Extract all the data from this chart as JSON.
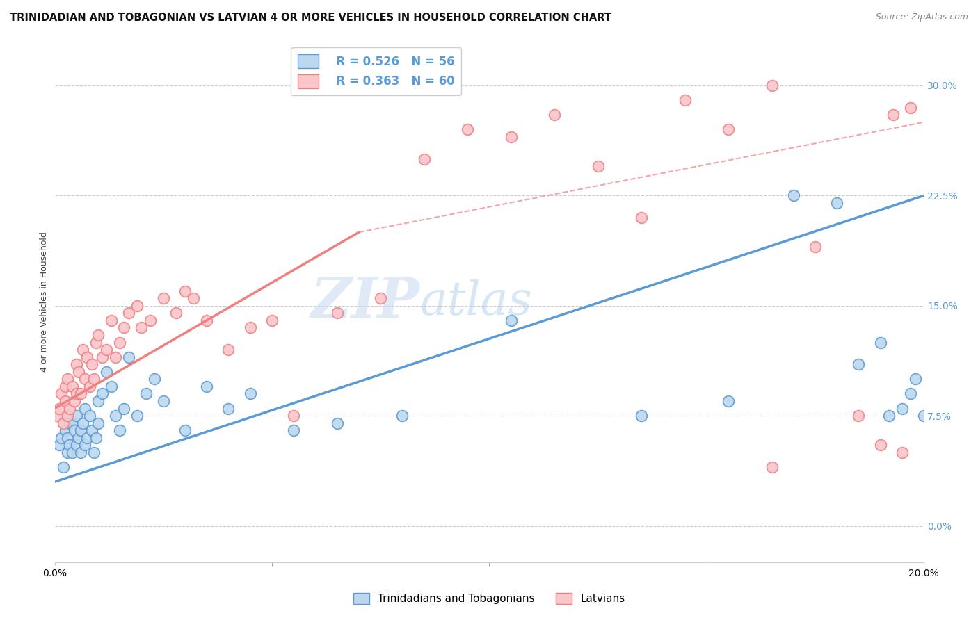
{
  "title": "TRINIDADIAN AND TOBAGONIAN VS LATVIAN 4 OR MORE VEHICLES IN HOUSEHOLD CORRELATION CHART",
  "source": "Source: ZipAtlas.com",
  "ylabel": "4 or more Vehicles in Household",
  "ytick_vals": [
    0.0,
    7.5,
    15.0,
    22.5,
    30.0
  ],
  "xlim": [
    0.0,
    20.0
  ],
  "ylim": [
    -2.5,
    33.0
  ],
  "blue_color": "#5b9bd5",
  "blue_fill": "#bdd7ee",
  "pink_color": "#f08080",
  "pink_fill": "#f9c6cc",
  "watermark_zip": "ZIP",
  "watermark_atlas": "atlas",
  "blue_scatter_x": [
    0.1,
    0.15,
    0.2,
    0.25,
    0.3,
    0.3,
    0.35,
    0.35,
    0.4,
    0.4,
    0.45,
    0.5,
    0.5,
    0.55,
    0.6,
    0.6,
    0.65,
    0.7,
    0.7,
    0.75,
    0.8,
    0.85,
    0.9,
    0.95,
    1.0,
    1.0,
    1.1,
    1.2,
    1.3,
    1.4,
    1.5,
    1.6,
    1.7,
    1.9,
    2.1,
    2.3,
    2.5,
    3.0,
    3.5,
    4.0,
    4.5,
    5.5,
    6.5,
    8.0,
    10.5,
    13.5,
    15.5,
    17.0,
    18.0,
    18.5,
    19.0,
    19.2,
    19.5,
    19.7,
    19.8,
    20.0
  ],
  "blue_scatter_y": [
    5.5,
    6.0,
    4.0,
    6.5,
    5.0,
    6.0,
    5.5,
    7.0,
    5.0,
    7.0,
    6.5,
    5.5,
    7.5,
    6.0,
    5.0,
    6.5,
    7.0,
    5.5,
    8.0,
    6.0,
    7.5,
    6.5,
    5.0,
    6.0,
    8.5,
    7.0,
    9.0,
    10.5,
    9.5,
    7.5,
    6.5,
    8.0,
    11.5,
    7.5,
    9.0,
    10.0,
    8.5,
    6.5,
    9.5,
    8.0,
    9.0,
    6.5,
    7.0,
    7.5,
    14.0,
    7.5,
    8.5,
    22.5,
    22.0,
    11.0,
    12.5,
    7.5,
    8.0,
    9.0,
    10.0,
    7.5
  ],
  "pink_scatter_x": [
    0.05,
    0.1,
    0.15,
    0.2,
    0.25,
    0.25,
    0.3,
    0.3,
    0.35,
    0.4,
    0.45,
    0.5,
    0.5,
    0.55,
    0.6,
    0.65,
    0.7,
    0.75,
    0.8,
    0.85,
    0.9,
    0.95,
    1.0,
    1.1,
    1.2,
    1.3,
    1.4,
    1.5,
    1.6,
    1.7,
    1.9,
    2.0,
    2.2,
    2.5,
    2.8,
    3.0,
    3.2,
    3.5,
    4.0,
    4.5,
    5.0,
    5.5,
    6.5,
    7.5,
    8.5,
    9.5,
    10.5,
    11.5,
    12.5,
    13.5,
    14.5,
    15.5,
    16.5,
    17.5,
    18.5,
    19.0,
    19.3,
    19.5,
    19.7,
    16.5
  ],
  "pink_scatter_y": [
    7.5,
    8.0,
    9.0,
    7.0,
    8.5,
    9.5,
    7.5,
    10.0,
    8.0,
    9.5,
    8.5,
    9.0,
    11.0,
    10.5,
    9.0,
    12.0,
    10.0,
    11.5,
    9.5,
    11.0,
    10.0,
    12.5,
    13.0,
    11.5,
    12.0,
    14.0,
    11.5,
    12.5,
    13.5,
    14.5,
    15.0,
    13.5,
    14.0,
    15.5,
    14.5,
    16.0,
    15.5,
    14.0,
    12.0,
    13.5,
    14.0,
    7.5,
    14.5,
    15.5,
    25.0,
    27.0,
    26.5,
    28.0,
    24.5,
    21.0,
    29.0,
    27.0,
    30.0,
    19.0,
    7.5,
    5.5,
    28.0,
    5.0,
    28.5,
    4.0
  ],
  "blue_line_x0": 0.0,
  "blue_line_y0": 3.0,
  "blue_line_x1": 20.0,
  "blue_line_y1": 22.5,
  "pink_solid_x0": 0.0,
  "pink_solid_y0": 8.0,
  "pink_solid_x1": 7.0,
  "pink_solid_y1": 20.0,
  "pink_dash_x0": 7.0,
  "pink_dash_y0": 20.0,
  "pink_dash_x1": 20.0,
  "pink_dash_y1": 27.5,
  "grid_color": "#cccccc",
  "grid_style": "--",
  "bg_color": "#ffffff",
  "title_fontsize": 10.5,
  "axis_label_fontsize": 9,
  "tick_fontsize": 10,
  "legend_fontsize": 12
}
